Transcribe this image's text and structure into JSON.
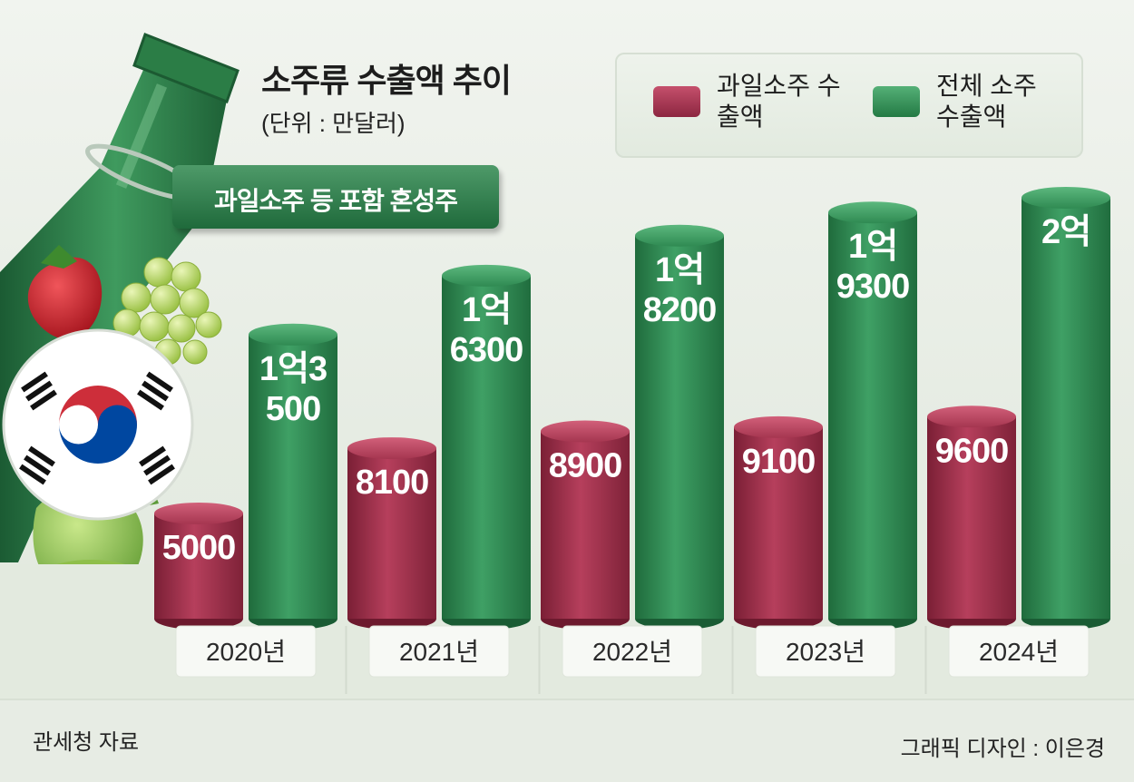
{
  "header": {
    "title": "소주류 수출액 추이",
    "unit": "(단위 : 만달러)",
    "tag": "과일소주 등 포함 혼성주"
  },
  "legend": {
    "fruit_label": "과일소주 수출액",
    "total_label": "전체 소주 수출액"
  },
  "footer": {
    "source": "관세청 자료",
    "credit": "그래픽 디자인 : 이은경"
  },
  "colors": {
    "fruit": "#9e2f4a",
    "total": "#2f8a52",
    "bottle": "#2d7a45"
  },
  "chart_data": {
    "type": "bar",
    "categories": [
      "2020년",
      "2021년",
      "2022년",
      "2023년",
      "2024년"
    ],
    "series": [
      {
        "name": "과일소주 수출액",
        "values": [
          5000,
          8100,
          8900,
          9100,
          9600
        ],
        "labels": [
          "5000",
          "8100",
          "8900",
          "9100",
          "9600"
        ]
      },
      {
        "name": "전체 소주 수출액",
        "values": [
          13500,
          16300,
          18200,
          19300,
          20000
        ],
        "labels": [
          "1억3\n500",
          "1억\n6300",
          "1억\n8200",
          "1억\n9300",
          "2억"
        ]
      }
    ],
    "title": "소주류 수출액 추이",
    "ylabel": "(단위 : 만달러)",
    "ylim": [
      0,
      20000
    ],
    "grid": false,
    "legend_position": "top-right"
  }
}
